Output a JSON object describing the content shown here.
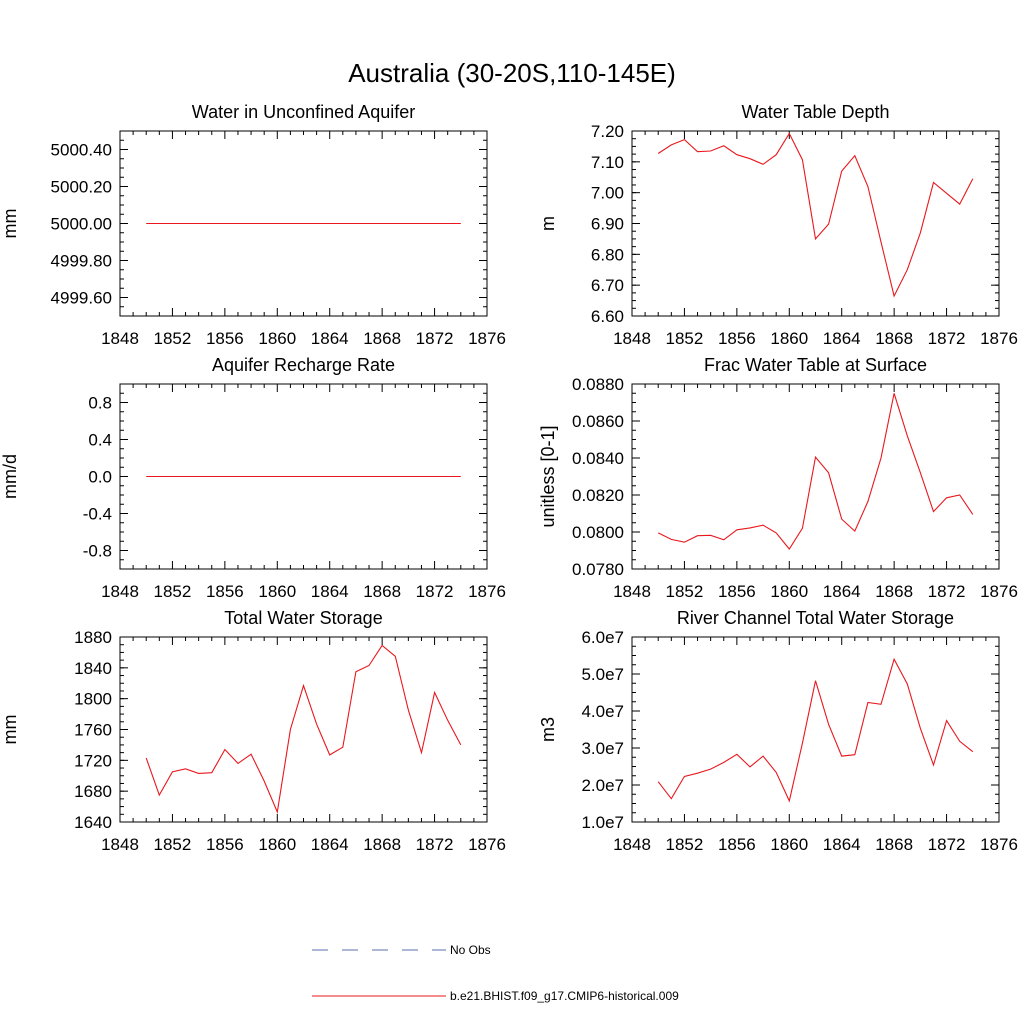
{
  "title": "Australia (30-20S,110-145E)",
  "chart_data": [
    {
      "type": "line",
      "title": "Water in Unconfined Aquifer",
      "ylabel": "mm",
      "xlim": [
        1848,
        1876
      ],
      "xticks": [
        "1848",
        "1852",
        "1856",
        "1860",
        "1864",
        "1868",
        "1872",
        "1876"
      ],
      "ylim": [
        4999.5,
        5000.5
      ],
      "yticks": [
        "4999.60",
        "4999.80",
        "5000.00",
        "5000.20",
        "5000.40"
      ],
      "series": [
        {
          "x": [
            1850,
            1851,
            1852,
            1853,
            1854,
            1855,
            1856,
            1857,
            1858,
            1859,
            1860,
            1861,
            1862,
            1863,
            1864,
            1865,
            1866,
            1867,
            1868,
            1869,
            1870,
            1871,
            1872,
            1873,
            1874
          ],
          "values": [
            5000,
            5000,
            5000,
            5000,
            5000,
            5000,
            5000,
            5000,
            5000,
            5000,
            5000,
            5000,
            5000,
            5000,
            5000,
            5000,
            5000,
            5000,
            5000,
            5000,
            5000,
            5000,
            5000,
            5000,
            5000
          ]
        }
      ]
    },
    {
      "type": "line",
      "title": "Water Table Depth",
      "ylabel": "m",
      "xlim": [
        1848,
        1876
      ],
      "xticks": [
        "1848",
        "1852",
        "1856",
        "1860",
        "1864",
        "1868",
        "1872",
        "1876"
      ],
      "ylim": [
        6.6,
        7.2
      ],
      "yticks": [
        "6.60",
        "6.70",
        "6.80",
        "6.90",
        "7.00",
        "7.10",
        "7.20"
      ],
      "series": [
        {
          "x": [
            1850,
            1851,
            1852,
            1853,
            1854,
            1855,
            1856,
            1857,
            1858,
            1859,
            1860,
            1861,
            1862,
            1863,
            1864,
            1865,
            1866,
            1867,
            1868,
            1869,
            1870,
            1871,
            1872,
            1873,
            1874
          ],
          "values": [
            7.127,
            7.155,
            7.172,
            7.133,
            7.135,
            7.152,
            7.123,
            7.11,
            7.092,
            7.123,
            7.192,
            7.107,
            6.85,
            6.898,
            7.07,
            7.12,
            7.02,
            6.84,
            6.665,
            6.75,
            6.87,
            7.033,
            6.998,
            6.963,
            7.045
          ]
        }
      ]
    },
    {
      "type": "line",
      "title": "Aquifer Recharge Rate",
      "ylabel": "mm/d",
      "xlim": [
        1848,
        1876
      ],
      "xticks": [
        "1848",
        "1852",
        "1856",
        "1860",
        "1864",
        "1868",
        "1872",
        "1876"
      ],
      "ylim": [
        -1.0,
        1.0
      ],
      "yticks": [
        "-0.8",
        "-0.4",
        "0.0",
        "0.4",
        "0.8"
      ],
      "series": [
        {
          "x": [
            1850,
            1851,
            1852,
            1853,
            1854,
            1855,
            1856,
            1857,
            1858,
            1859,
            1860,
            1861,
            1862,
            1863,
            1864,
            1865,
            1866,
            1867,
            1868,
            1869,
            1870,
            1871,
            1872,
            1873,
            1874
          ],
          "values": [
            0,
            0,
            0,
            0,
            0,
            0,
            0,
            0,
            0,
            0,
            0,
            0,
            0,
            0,
            0,
            0,
            0,
            0,
            0,
            0,
            0,
            0,
            0,
            0,
            0
          ]
        }
      ]
    },
    {
      "type": "line",
      "title": "Frac Water Table at Surface",
      "ylabel": "unitless [0-1]",
      "xlim": [
        1848,
        1876
      ],
      "xticks": [
        "1848",
        "1852",
        "1856",
        "1860",
        "1864",
        "1868",
        "1872",
        "1876"
      ],
      "ylim": [
        0.078,
        0.088
      ],
      "yticks": [
        "0.0780",
        "0.0800",
        "0.0820",
        "0.0840",
        "0.0860",
        "0.0880"
      ],
      "series": [
        {
          "x": [
            1850,
            1851,
            1852,
            1853,
            1854,
            1855,
            1856,
            1857,
            1858,
            1859,
            1860,
            1861,
            1862,
            1863,
            1864,
            1865,
            1866,
            1867,
            1868,
            1869,
            1870,
            1871,
            1872,
            1873,
            1874
          ],
          "values": [
            0.07995,
            0.0796,
            0.07945,
            0.0798,
            0.07982,
            0.07958,
            0.08012,
            0.08022,
            0.08037,
            0.07995,
            0.07908,
            0.0802,
            0.08405,
            0.0832,
            0.0807,
            0.08005,
            0.08165,
            0.084,
            0.0875,
            0.0852,
            0.0832,
            0.0811,
            0.08185,
            0.082,
            0.08095
          ]
        }
      ]
    },
    {
      "type": "line",
      "title": "Total Water Storage",
      "ylabel": "mm",
      "xlim": [
        1848,
        1876
      ],
      "xticks": [
        "1848",
        "1852",
        "1856",
        "1860",
        "1864",
        "1868",
        "1872",
        "1876"
      ],
      "ylim": [
        1640,
        1880
      ],
      "yticks": [
        "1640",
        "1680",
        "1720",
        "1760",
        "1800",
        "1840",
        "1880"
      ],
      "series": [
        {
          "x": [
            1850,
            1851,
            1852,
            1853,
            1854,
            1855,
            1856,
            1857,
            1858,
            1859,
            1860,
            1861,
            1862,
            1863,
            1864,
            1865,
            1866,
            1867,
            1868,
            1869,
            1870,
            1871,
            1872,
            1873,
            1874
          ],
          "values": [
            1723,
            1675,
            1705,
            1709,
            1703,
            1704,
            1734,
            1716,
            1728,
            1693,
            1653,
            1760,
            1817,
            1767,
            1727,
            1737,
            1835,
            1843,
            1869,
            1855,
            1785,
            1730,
            1808,
            1772,
            1740
          ]
        }
      ]
    },
    {
      "type": "line",
      "title": "River Channel Total Water Storage",
      "ylabel": "m3",
      "xlim": [
        1848,
        1876
      ],
      "xticks": [
        "1848",
        "1852",
        "1856",
        "1860",
        "1864",
        "1868",
        "1872",
        "1876"
      ],
      "ylim": [
        10000000,
        60000000
      ],
      "yticks": [
        "1.0e7",
        "2.0e7",
        "3.0e7",
        "4.0e7",
        "5.0e7",
        "6.0e7"
      ],
      "series": [
        {
          "x": [
            1850,
            1851,
            1852,
            1853,
            1854,
            1855,
            1856,
            1857,
            1858,
            1859,
            1860,
            1861,
            1862,
            1863,
            1864,
            1865,
            1866,
            1867,
            1868,
            1869,
            1870,
            1871,
            1872,
            1873,
            1874
          ],
          "values": [
            20900000,
            16300000,
            22300000,
            23200000,
            24300000,
            26100000,
            28300000,
            24900000,
            27800000,
            23400000,
            15700000,
            31300000,
            48200000,
            36400000,
            27800000,
            28200000,
            42300000,
            41800000,
            54000000,
            47300000,
            35300000,
            25400000,
            37400000,
            31800000,
            29000000
          ]
        }
      ]
    }
  ],
  "legend": {
    "items": [
      {
        "label": "No Obs",
        "color": "#5a6fae",
        "style": "dashed"
      },
      {
        "label": "b.e21.BHIST.f09_g17.CMIP6-historical.009",
        "color": "#e8181e",
        "style": "solid"
      }
    ]
  },
  "colors": {
    "line": "#e8181e",
    "axis": "#000000"
  }
}
